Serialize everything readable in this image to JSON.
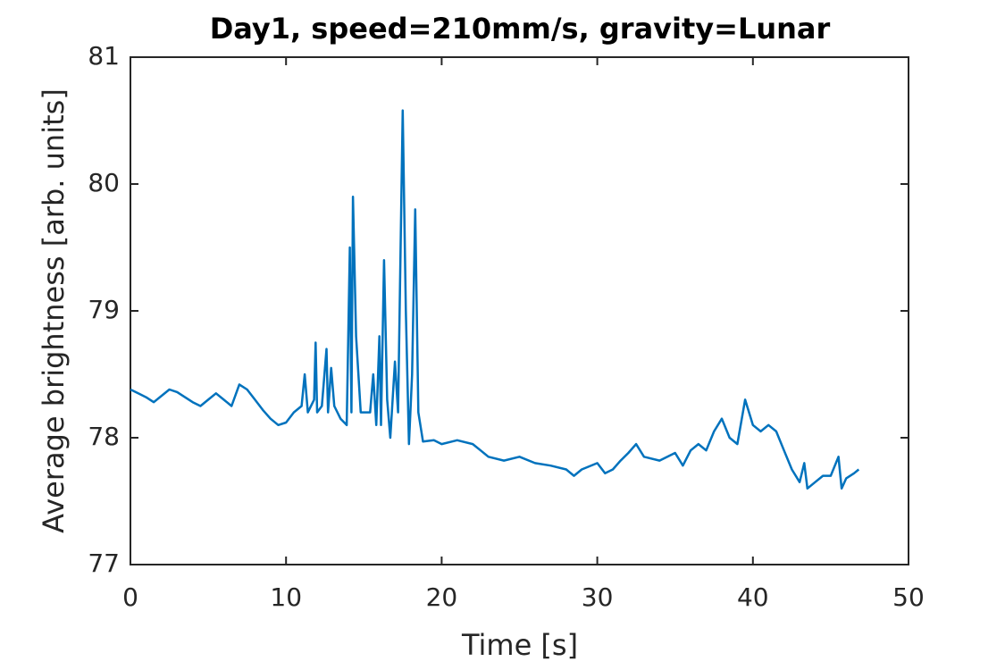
{
  "chart_data": {
    "type": "line",
    "title": "Day1, speed=210mm/s, gravity=Lunar",
    "x_label": "Time [s]",
    "y_label": "Average brightness [arb. units]",
    "xlim": [
      0,
      50
    ],
    "xticks": [
      0,
      10,
      20,
      30,
      40,
      50
    ],
    "ylim": [
      77,
      81
    ],
    "yticks": [
      77,
      78,
      79,
      80,
      81
    ],
    "grid": false,
    "series": [
      {
        "color": "#0072bd",
        "x": [
          0,
          0.5,
          1,
          1.5,
          2,
          2.5,
          3,
          3.5,
          4,
          4.5,
          5,
          5.5,
          6,
          6.5,
          7,
          7.5,
          8,
          8.5,
          9,
          9.5,
          10,
          10.5,
          11,
          11.2,
          11.4,
          11.8,
          11.9,
          12,
          12.3,
          12.6,
          12.7,
          12.9,
          13.1,
          13.5,
          13.9,
          14.1,
          14.2,
          14.3,
          14.5,
          14.8,
          15.1,
          15.4,
          15.6,
          15.8,
          16,
          16.1,
          16.3,
          16.5,
          16.7,
          17,
          17.2,
          17.5,
          17.7,
          17.9,
          18.1,
          18.3,
          18.5,
          18.8,
          19.5,
          20,
          21,
          22,
          22.5,
          23,
          24,
          25,
          26,
          27,
          28,
          28.5,
          29,
          30,
          30.5,
          31,
          31.5,
          32,
          32.5,
          33,
          34,
          35,
          35.5,
          36,
          36.5,
          37,
          37.5,
          38,
          38.5,
          39,
          39.5,
          40,
          40.5,
          41,
          41.5,
          42,
          42.5,
          43,
          43.3,
          43.5,
          44,
          44.5,
          45,
          45.5,
          45.7,
          46,
          46.5,
          46.8
        ],
        "values": [
          78.38,
          78.35,
          78.32,
          78.28,
          78.33,
          78.38,
          78.36,
          78.32,
          78.28,
          78.25,
          78.3,
          78.35,
          78.3,
          78.25,
          78.42,
          78.38,
          78.3,
          78.22,
          78.15,
          78.1,
          78.12,
          78.2,
          78.25,
          78.5,
          78.2,
          78.3,
          78.75,
          78.2,
          78.25,
          78.7,
          78.2,
          78.55,
          78.25,
          78.15,
          78.1,
          79.5,
          78.2,
          79.9,
          78.8,
          78.2,
          78.2,
          78.2,
          78.5,
          78.1,
          78.8,
          78.1,
          79.4,
          78.3,
          78.0,
          78.6,
          78.2,
          80.58,
          79.0,
          77.95,
          78.5,
          79.8,
          78.2,
          77.97,
          77.98,
          77.95,
          77.98,
          77.95,
          77.9,
          77.85,
          77.82,
          77.85,
          77.8,
          77.78,
          77.75,
          77.7,
          77.75,
          77.8,
          77.72,
          77.75,
          77.82,
          77.88,
          77.95,
          77.85,
          77.82,
          77.88,
          77.78,
          77.9,
          77.95,
          77.9,
          78.05,
          78.15,
          78.0,
          77.95,
          78.3,
          78.1,
          78.05,
          78.1,
          78.05,
          77.9,
          77.75,
          77.65,
          77.8,
          77.6,
          77.65,
          77.7,
          77.7,
          77.85,
          77.6,
          77.68,
          77.72,
          77.75
        ]
      }
    ]
  }
}
